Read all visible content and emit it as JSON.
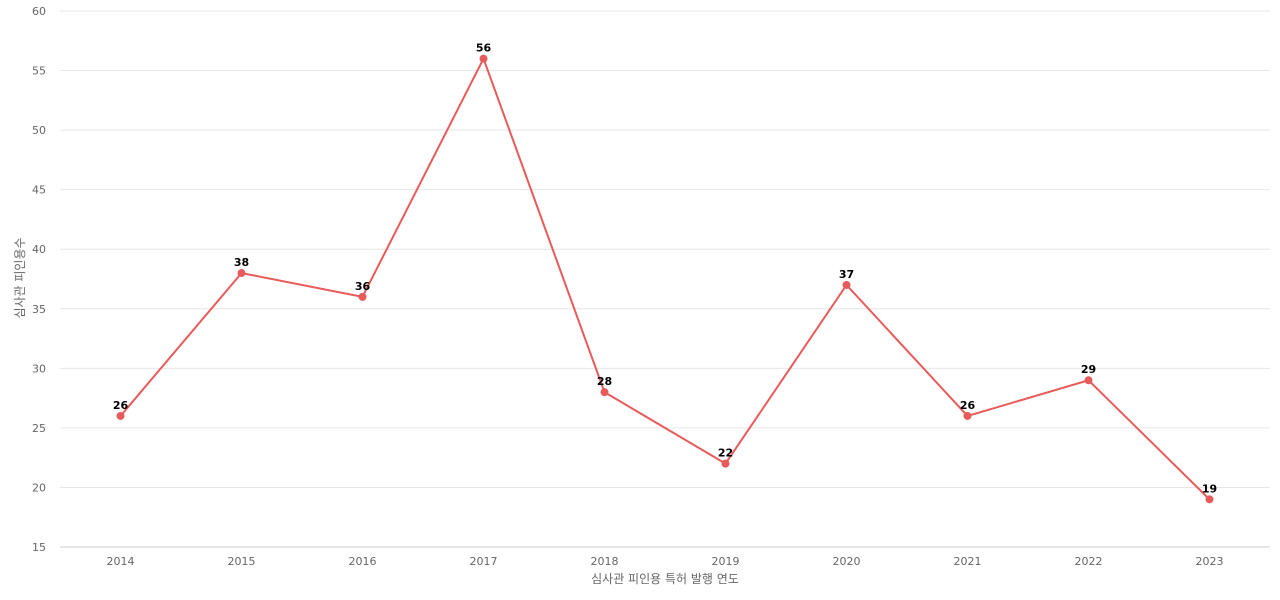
{
  "chart_data": {
    "type": "line",
    "categories": [
      "2014",
      "2015",
      "2016",
      "2017",
      "2018",
      "2019",
      "2020",
      "2021",
      "2022",
      "2023"
    ],
    "series": [
      {
        "values": [
          26,
          38,
          36,
          56,
          28,
          22,
          37,
          26,
          29,
          19
        ]
      }
    ],
    "xlabel": "심사관 피인용 특허 발행 연도",
    "ylabel": "심사관 피인용수",
    "ylim": [
      15,
      60
    ],
    "yticks": [
      15,
      20,
      25,
      30,
      35,
      40,
      45,
      50,
      55,
      60
    ],
    "grid": true,
    "data_labels": true,
    "legend": "none",
    "colors": {
      "series": "#e85b5b",
      "grid": "#e6e6e6",
      "tick_text": "#666666",
      "data_label": "#000000"
    }
  }
}
